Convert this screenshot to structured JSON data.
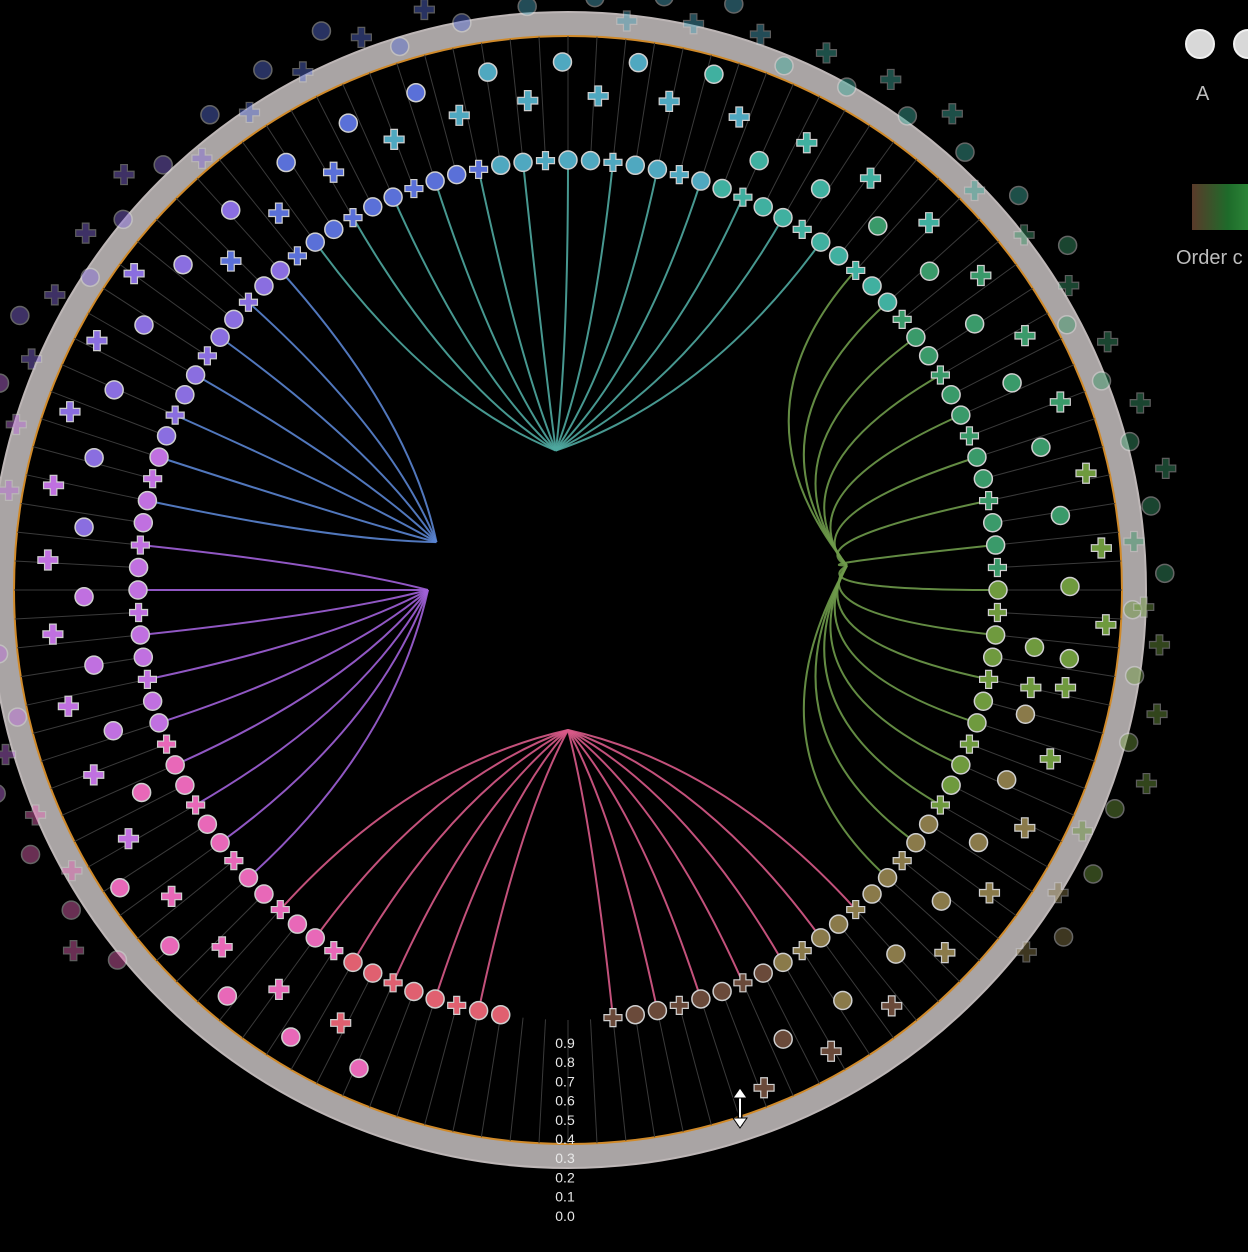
{
  "legend": {
    "shape_labels": [
      "A"
    ],
    "color_scale_label": "Order c",
    "color_scale_colors": [
      "#5a3a2a",
      "#1e6b2a",
      "#2e8a3a"
    ]
  },
  "chart_data": {
    "type": "radial-dot-plot",
    "title": "",
    "radial_axis": {
      "ticks": [
        "0.9",
        "0.8",
        "0.7",
        "0.6",
        "0.5",
        "0.4",
        "0.3",
        "0.2",
        "0.1",
        "0.0"
      ],
      "range": [
        0.0,
        0.9
      ]
    },
    "ring_color": "#a9a4a4",
    "ring_border_color": "#d08a2a",
    "background": "#000000",
    "edge_bundles": [
      {
        "name": "",
        "color": "#5a84d0",
        "hub_angle_deg": 200,
        "count": 14
      },
      {
        "name": "",
        "color": "#4fa8a0",
        "hub_angle_deg": 265,
        "count": 18
      },
      {
        "name": "",
        "color": "#a060d8",
        "hub_angle_deg": 180,
        "count": 16
      },
      {
        "name": "",
        "color": "#6e9a4a",
        "hub_angle_deg": 355,
        "count": 12
      },
      {
        "name": "",
        "color": "#d85a88",
        "hub_angle_deg": 90,
        "count": 30
      }
    ],
    "node_count": 120,
    "shapes": [
      "circle",
      "plus"
    ]
  },
  "cursor": {
    "icon": "resize-vertical-icon"
  }
}
